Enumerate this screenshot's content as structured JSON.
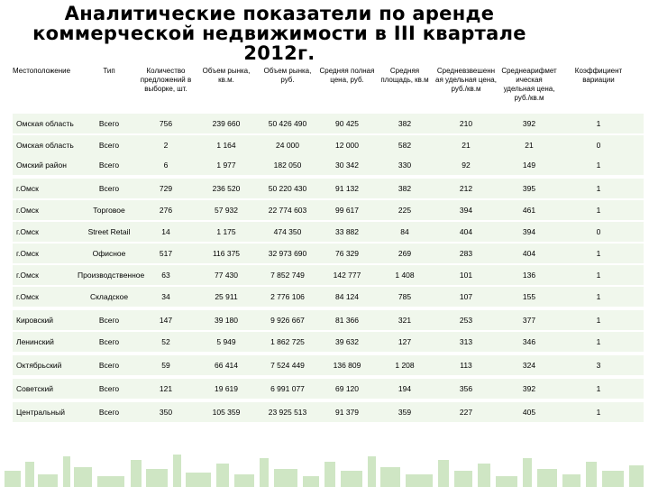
{
  "title": {
    "line1": "Аналитические показатели по аренде",
    "line2": "коммерческой недвижимости в III квартале",
    "line3": "2012г."
  },
  "columns": [
    "Местоположение",
    "Тип",
    "Количество предложений в выборке, шт.",
    "Объем рынка, кв.м.",
    "Объем рынка, руб.",
    "Средняя полная цена, руб.",
    "Средняя площадь, кв.м",
    "Средневзвешенн ая удельная цена, руб./кв.м",
    "Среднеарифмет ическая удельная цена, руб./кв.м",
    "Коэффициент вариации"
  ],
  "rows": [
    [
      "Омская область",
      "Всего",
      "756",
      "239 660",
      "50 426 490",
      "90 425",
      "382",
      "210",
      "392",
      "1"
    ],
    [
      "Омская область",
      "Всего",
      "2",
      "1 164",
      "24 000",
      "12 000",
      "582",
      "21",
      "21",
      "0"
    ],
    [
      "Омский район",
      "Всего",
      "6",
      "1 977",
      "182 050",
      "30 342",
      "330",
      "92",
      "149",
      "1"
    ],
    [
      "г.Омск",
      "Всего",
      "729",
      "236 520",
      "50 220 430",
      "91 132",
      "382",
      "212",
      "395",
      "1"
    ],
    [
      "г.Омск",
      "Торговое",
      "276",
      "57 932",
      "22 774 603",
      "99 617",
      "225",
      "394",
      "461",
      "1"
    ],
    [
      "г.Омск",
      "Street Retail",
      "14",
      "1 175",
      "474 350",
      "33 882",
      "84",
      "404",
      "394",
      "0"
    ],
    [
      "г.Омск",
      "Офисное",
      "517",
      "116 375",
      "32 973 690",
      "76 329",
      "269",
      "283",
      "404",
      "1"
    ],
    [
      "г.Омск",
      "Производственное",
      "63",
      "77 430",
      "7 852 749",
      "142 777",
      "1 408",
      "101",
      "136",
      "1"
    ],
    [
      "г.Омск",
      "Складское",
      "34",
      "25 911",
      "2 776 106",
      "84 124",
      "785",
      "107",
      "155",
      "1"
    ],
    [
      "Кировский",
      "Всего",
      "147",
      "39 180",
      "9 926 667",
      "81 366",
      "321",
      "253",
      "377",
      "1"
    ],
    [
      "Ленинский",
      "Всего",
      "52",
      "5 949",
      "1 862 725",
      "39 632",
      "127",
      "313",
      "346",
      "1"
    ],
    [
      "Октябрьский",
      "Всего",
      "59",
      "66 414",
      "7 524 449",
      "136 809",
      "1 208",
      "113",
      "324",
      "3"
    ],
    [
      "Советский",
      "Всего",
      "121",
      "19 619",
      "6 991 077",
      "69 120",
      "194",
      "356",
      "392",
      "1"
    ],
    [
      "Центральный",
      "Всего",
      "350",
      "105 359",
      "23 925 513",
      "91 379",
      "359",
      "227",
      "405",
      "1"
    ]
  ],
  "colors": {
    "row_bg": "#f0f7ec",
    "skyline": "#cfe6c4"
  }
}
